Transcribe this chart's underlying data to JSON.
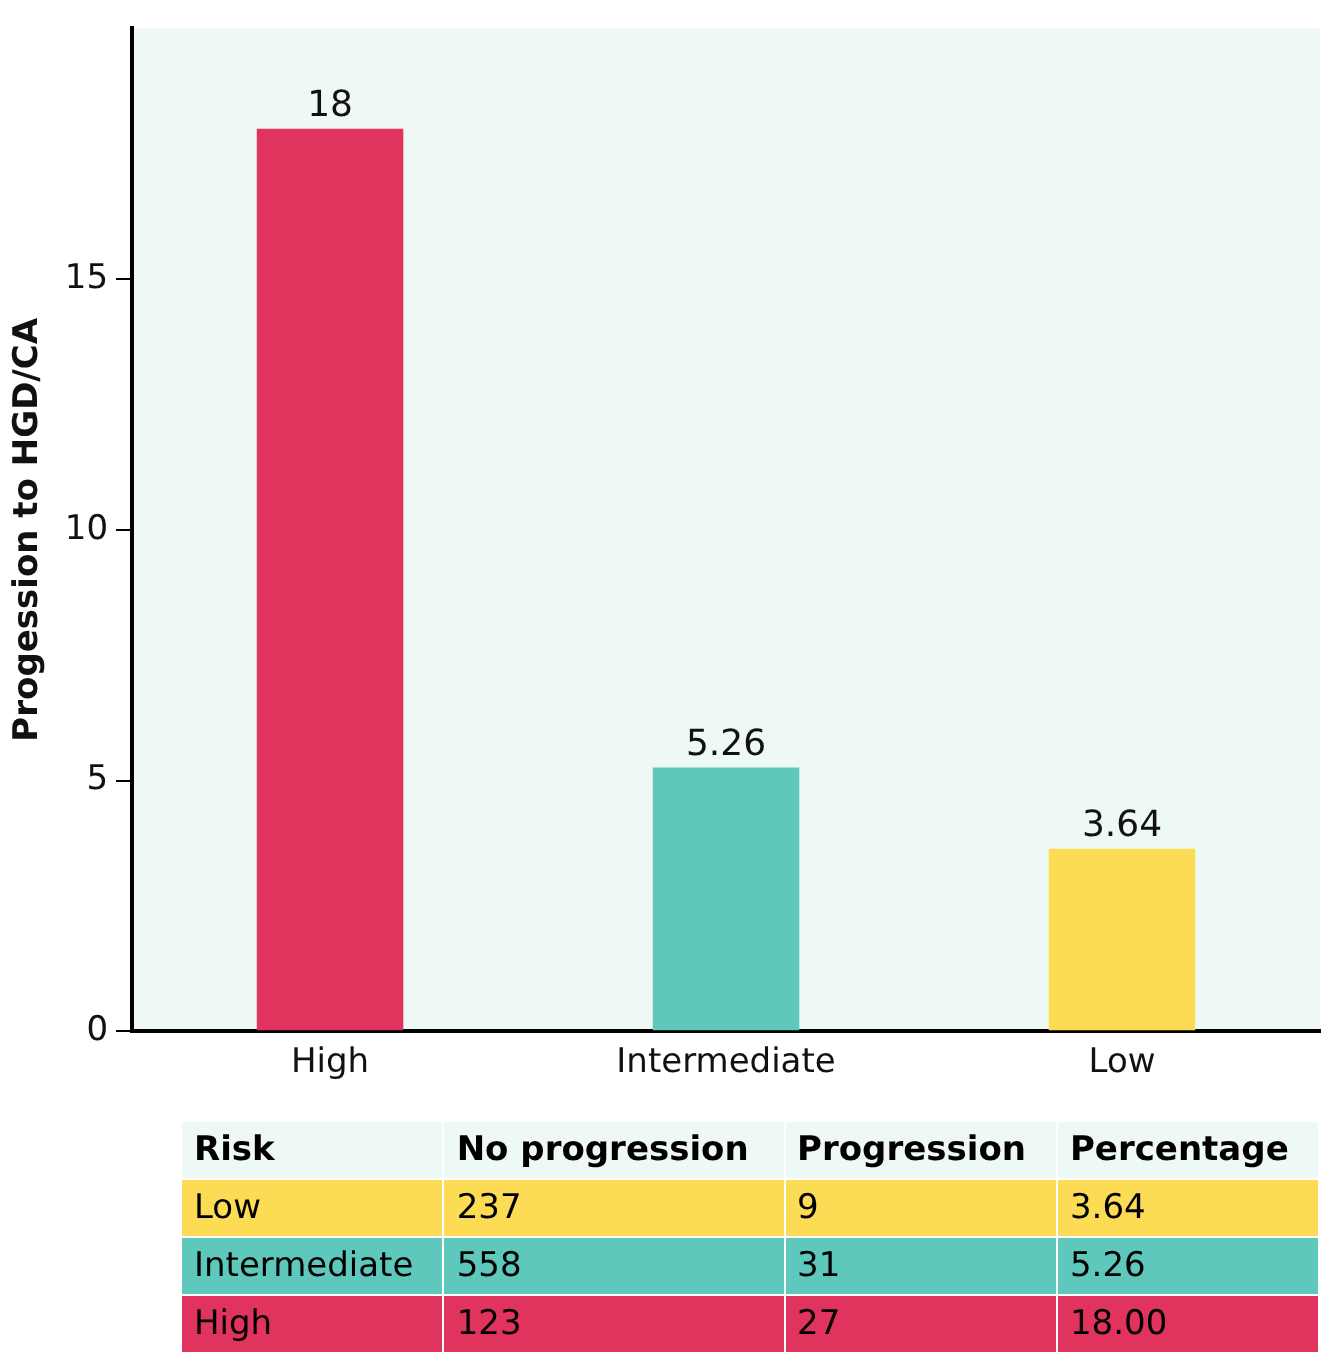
{
  "chart_data": [
    {
      "type": "bar",
      "ylabel": "Progession to HGD/CA",
      "categories": [
        "High",
        "Intermediate",
        "Low"
      ],
      "values": [
        18,
        5.26,
        3.64
      ],
      "colors": [
        "#e0335e",
        "#5ec8bd",
        "#fcdc55"
      ],
      "ylim": [
        0,
        20
      ],
      "yticks": [
        0,
        5,
        10,
        15
      ],
      "data_labels": true,
      "grid": false,
      "legend": false
    },
    {
      "type": "other",
      "xlabel": "Risk",
      "categories": [
        "Low",
        "Intermediate",
        "High"
      ],
      "colors": [
        "#fcdc55",
        "#5ec8bd",
        "#e0335e"
      ],
      "y_categories": [
        "No progression",
        "Progression",
        "Percentage"
      ],
      "cell_labels": [
        [
          "237",
          "558",
          "123"
        ],
        [
          "9",
          "31",
          "27"
        ],
        [
          "3.64",
          "5.26",
          "18.00"
        ]
      ]
    }
  ]
}
